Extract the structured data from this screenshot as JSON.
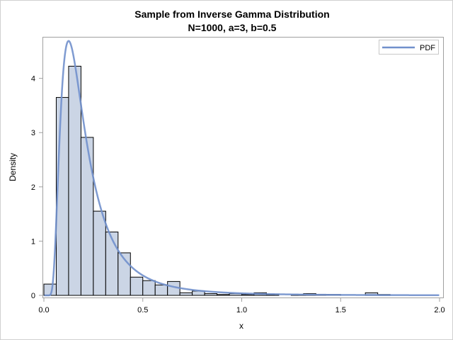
{
  "chart_data": {
    "type": "bar",
    "title": "Sample from Inverse Gamma Distribution",
    "subtitle": "N=1000, a=3, b=0.5",
    "xlabel": "x",
    "ylabel": "Density",
    "xlim": [
      0,
      2.0
    ],
    "ylim": [
      0,
      4.75
    ],
    "xticks": [
      "0.0",
      "0.5",
      "1.0",
      "1.5",
      "2.0"
    ],
    "xtick_values": [
      0,
      0.5,
      1.0,
      1.5,
      2.0
    ],
    "yticks": [
      "0",
      "1",
      "2",
      "3",
      "4"
    ],
    "ytick_values": [
      0,
      1,
      2,
      3,
      4
    ],
    "bin_width": 0.0625,
    "bin_starts": [
      0,
      0.0625,
      0.125,
      0.1875,
      0.25,
      0.3125,
      0.375,
      0.4375,
      0.5,
      0.5625,
      0.625,
      0.6875,
      0.75,
      0.8125,
      0.875,
      0.9375,
      1.0,
      1.0625,
      1.125,
      1.1875,
      1.25,
      1.3125,
      1.375,
      1.4375,
      1.5,
      1.5625,
      1.625,
      1.6875
    ],
    "values": [
      0.208,
      3.648,
      4.224,
      2.912,
      1.552,
      1.168,
      0.784,
      0.336,
      0.272,
      0.192,
      0.256,
      0.048,
      0.08,
      0.032,
      0.016,
      0.032,
      0.016,
      0.048,
      0.016,
      0,
      0.016,
      0.032,
      0.016,
      0.016,
      0,
      0,
      0.048,
      0.016
    ],
    "pdf": {
      "name": "PDF",
      "a": 3,
      "b": 0.5
    },
    "legend": {
      "position": "top-right",
      "entries": [
        "PDF"
      ]
    },
    "colors": {
      "bar_fill": "#cbd5e5",
      "bar_edge": "#000000",
      "pdf_line": "#7190cc"
    },
    "grid": false
  }
}
